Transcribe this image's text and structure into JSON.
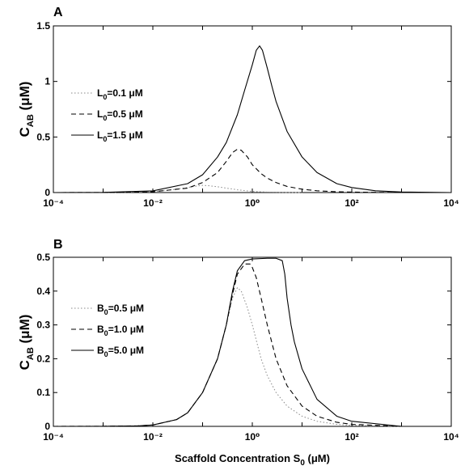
{
  "chart_data": [
    {
      "panel": "A",
      "type": "line",
      "xscale": "log",
      "xlim": [
        0.0001,
        10000
      ],
      "ylim": [
        0,
        1.5
      ],
      "xticks": [
        "10⁻⁴",
        "10⁻²",
        "10⁰",
        "10²",
        "10⁴"
      ],
      "yticks": [
        "0",
        "0.5",
        "1",
        "1.5"
      ],
      "ylabel": "C_AB (μM)",
      "xlabel": "",
      "legend": "upper-left",
      "series": [
        {
          "name": "L_0=0.1 μM",
          "style": "dotted",
          "color": "#888888",
          "x": [
            0.0001,
            0.001,
            0.003,
            0.01,
            0.02,
            0.05,
            0.08,
            0.1,
            0.13,
            0.2,
            0.3,
            0.5,
            1,
            2,
            5,
            10
          ],
          "y": [
            0.0,
            0.0005,
            0.002,
            0.008,
            0.02,
            0.045,
            0.06,
            0.065,
            0.062,
            0.052,
            0.04,
            0.025,
            0.01,
            0.004,
            0.001,
            0.0
          ]
        },
        {
          "name": "L_0=0.5 μM",
          "style": "dashed",
          "color": "#000000",
          "x": [
            0.0001,
            0.001,
            0.005,
            0.01,
            0.05,
            0.1,
            0.2,
            0.3,
            0.4,
            0.5,
            0.6,
            0.8,
            1,
            1.5,
            2,
            3,
            5,
            10,
            20,
            50,
            100,
            1000
          ],
          "y": [
            0.0,
            0.0005,
            0.003,
            0.007,
            0.04,
            0.09,
            0.18,
            0.28,
            0.36,
            0.39,
            0.38,
            0.32,
            0.25,
            0.17,
            0.13,
            0.09,
            0.055,
            0.03,
            0.016,
            0.007,
            0.004,
            0.0
          ]
        },
        {
          "name": "L_0=1.5 μM",
          "style": "solid",
          "color": "#000000",
          "x": [
            0.0001,
            0.001,
            0.01,
            0.05,
            0.1,
            0.2,
            0.3,
            0.5,
            0.7,
            1,
            1.2,
            1.4,
            1.6,
            2,
            2.5,
            3,
            5,
            10,
            20,
            50,
            100,
            300,
            1000,
            10000
          ],
          "y": [
            0.0,
            0.0015,
            0.015,
            0.08,
            0.16,
            0.32,
            0.45,
            0.7,
            0.92,
            1.15,
            1.28,
            1.32,
            1.28,
            1.12,
            0.95,
            0.82,
            0.55,
            0.32,
            0.18,
            0.08,
            0.045,
            0.016,
            0.005,
            0.0
          ]
        }
      ]
    },
    {
      "panel": "B",
      "type": "line",
      "xscale": "log",
      "xlim": [
        0.0001,
        10000
      ],
      "ylim": [
        0,
        0.5
      ],
      "xticks": [
        "10⁻⁴",
        "10⁻²",
        "10⁰",
        "10²",
        "10⁴"
      ],
      "yticks": [
        "0",
        "0.1",
        "0.2",
        "0.3",
        "0.4",
        "0.5"
      ],
      "ylabel": "C_AB (μM)",
      "xlabel": "Scaffold Concentration S_0 (μM)",
      "legend": "center-left",
      "series": [
        {
          "name": "B_0=0.5 μM",
          "style": "dotted",
          "color": "#888888",
          "x": [
            0.0001,
            0.001,
            0.005,
            0.01,
            0.03,
            0.05,
            0.1,
            0.2,
            0.3,
            0.4,
            0.5,
            0.6,
            0.8,
            1,
            1.5,
            2,
            3,
            5,
            10,
            20,
            50,
            100,
            1000
          ],
          "y": [
            0.0,
            0.0003,
            0.0015,
            0.004,
            0.02,
            0.04,
            0.1,
            0.2,
            0.3,
            0.38,
            0.41,
            0.4,
            0.35,
            0.3,
            0.2,
            0.15,
            0.1,
            0.06,
            0.03,
            0.015,
            0.006,
            0.003,
            0.0
          ]
        },
        {
          "name": "B_0=1.0 μM",
          "style": "dashed",
          "color": "#000000",
          "x": [
            0.0001,
            0.001,
            0.005,
            0.01,
            0.03,
            0.05,
            0.1,
            0.2,
            0.3,
            0.4,
            0.5,
            0.7,
            0.9,
            1,
            1.2,
            1.5,
            2,
            3,
            5,
            10,
            20,
            50,
            100,
            1000
          ],
          "y": [
            0.0,
            0.0003,
            0.0015,
            0.004,
            0.02,
            0.04,
            0.1,
            0.2,
            0.3,
            0.39,
            0.45,
            0.48,
            0.48,
            0.47,
            0.44,
            0.38,
            0.3,
            0.2,
            0.12,
            0.06,
            0.03,
            0.012,
            0.006,
            0.0
          ]
        },
        {
          "name": "B_0=5.0 μM",
          "style": "solid",
          "color": "#000000",
          "x": [
            0.0001,
            0.001,
            0.005,
            0.01,
            0.03,
            0.05,
            0.1,
            0.2,
            0.3,
            0.4,
            0.5,
            0.7,
            1,
            2,
            3,
            4,
            4.5,
            5,
            6,
            7,
            10,
            20,
            50,
            100,
            1000
          ],
          "y": [
            0.0,
            0.0003,
            0.0015,
            0.004,
            0.02,
            0.04,
            0.1,
            0.2,
            0.3,
            0.4,
            0.46,
            0.49,
            0.495,
            0.497,
            0.497,
            0.49,
            0.45,
            0.38,
            0.3,
            0.25,
            0.17,
            0.08,
            0.03,
            0.015,
            0.0
          ]
        }
      ]
    }
  ]
}
